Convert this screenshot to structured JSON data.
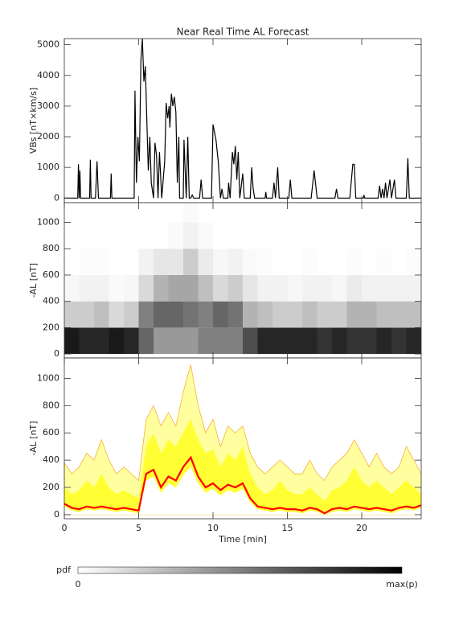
{
  "chart_data": [
    {
      "type": "line",
      "title": "Near Real Time AL Forecast",
      "y_label": "VBs [nT×km/s]",
      "color": "#000000",
      "x": [
        0,
        0.9,
        0.95,
        1.0,
        1.05,
        1.1,
        1.7,
        1.75,
        1.8,
        2.1,
        2.2,
        2.3,
        3.1,
        3.15,
        3.2,
        4.7,
        4.75,
        4.85,
        4.95,
        5.05,
        5.15,
        5.25,
        5.35,
        5.45,
        5.55,
        5.65,
        5.75,
        5.85,
        6.0,
        6.1,
        6.2,
        6.3,
        6.4,
        6.55,
        6.75,
        6.85,
        6.95,
        7.05,
        7.1,
        7.2,
        7.3,
        7.4,
        7.5,
        7.6,
        7.7,
        7.75,
        8.0,
        8.05,
        8.2,
        8.3,
        8.4,
        8.5,
        8.6,
        8.7,
        9.1,
        9.2,
        9.3,
        9.9,
        10.0,
        10.2,
        10.35,
        10.5,
        10.6,
        10.7,
        11.0,
        11.05,
        11.15,
        11.3,
        11.4,
        11.5,
        11.6,
        11.7,
        11.8,
        12.0,
        12.1,
        12.5,
        12.6,
        12.7,
        12.8,
        13.5,
        13.55,
        13.6,
        14.0,
        14.1,
        14.2,
        14.35,
        14.45,
        15.1,
        15.2,
        15.3,
        16.6,
        16.8,
        17.0,
        18.2,
        18.3,
        18.4,
        19.2,
        19.4,
        19.5,
        19.6,
        20.1,
        20.15,
        20.2,
        21.1,
        21.2,
        21.3,
        21.4,
        21.5,
        21.6,
        21.7,
        21.9,
        22.0,
        22.2,
        22.3,
        23.0,
        23.1,
        23.2,
        24
      ],
      "values": [
        0,
        0,
        1100,
        0,
        900,
        0,
        0,
        1250,
        0,
        0,
        1200,
        0,
        0,
        800,
        0,
        0,
        3500,
        500,
        2000,
        1200,
        4500,
        5200,
        3800,
        4300,
        2500,
        900,
        2000,
        500,
        0,
        1800,
        1400,
        0,
        1500,
        0,
        1200,
        3100,
        2600,
        3000,
        2300,
        3400,
        3000,
        3300,
        2800,
        500,
        2000,
        0,
        0,
        1900,
        0,
        2000,
        0,
        0,
        100,
        0,
        0,
        600,
        0,
        0,
        2400,
        1900,
        1200,
        0,
        300,
        0,
        0,
        500,
        0,
        1500,
        1100,
        1700,
        600,
        1500,
        0,
        800,
        0,
        0,
        1000,
        300,
        0,
        0,
        200,
        0,
        0,
        500,
        0,
        1000,
        0,
        0,
        600,
        0,
        0,
        900,
        0,
        0,
        300,
        0,
        0,
        1100,
        1100,
        0,
        0,
        100,
        0,
        0,
        400,
        0,
        300,
        0,
        500,
        0,
        600,
        0,
        600,
        0,
        0,
        1300,
        0,
        0
      ],
      "xlim": [
        0,
        24
      ],
      "ylim": [
        -150,
        5200
      ],
      "yticks": [
        0,
        1000,
        2000,
        3000,
        4000,
        5000
      ]
    },
    {
      "type": "heatmap",
      "y_label": "-AL [nT]",
      "xbins": [
        0,
        1,
        2,
        3,
        4,
        5,
        6,
        7,
        8,
        9,
        10,
        11,
        12,
        13,
        14,
        15,
        16,
        17,
        18,
        19,
        20,
        21,
        22,
        23,
        24
      ],
      "ybins": [
        0,
        200,
        400,
        600,
        800,
        1000,
        1200
      ],
      "values": [
        [
          0.9,
          0.85,
          0.85,
          0.9,
          0.85,
          0.6,
          0.4,
          0.4,
          0.4,
          0.5,
          0.5,
          0.5,
          0.7,
          0.85,
          0.85,
          0.85,
          0.85,
          0.8,
          0.85,
          0.8,
          0.8,
          0.85,
          0.8,
          0.85
        ],
        [
          0.2,
          0.2,
          0.25,
          0.15,
          0.2,
          0.5,
          0.6,
          0.6,
          0.55,
          0.5,
          0.6,
          0.55,
          0.3,
          0.25,
          0.2,
          0.2,
          0.25,
          0.2,
          0.2,
          0.3,
          0.3,
          0.25,
          0.25,
          0.25
        ],
        [
          0.03,
          0.05,
          0.05,
          0.02,
          0.03,
          0.15,
          0.3,
          0.35,
          0.35,
          0.25,
          0.15,
          0.2,
          0.1,
          0.05,
          0.05,
          0.03,
          0.05,
          0.05,
          0.03,
          0.08,
          0.05,
          0.05,
          0.05,
          0.05
        ],
        [
          0,
          0.01,
          0.01,
          0,
          0,
          0.05,
          0.1,
          0.1,
          0.2,
          0.08,
          0.03,
          0.05,
          0.02,
          0.01,
          0,
          0,
          0.01,
          0,
          0,
          0.01,
          0,
          0.01,
          0,
          0.01
        ],
        [
          0,
          0,
          0,
          0,
          0,
          0,
          0,
          0.02,
          0.05,
          0.02,
          0,
          0,
          0,
          0,
          0,
          0,
          0,
          0,
          0,
          0,
          0,
          0,
          0,
          0
        ],
        [
          0,
          0,
          0,
          0,
          0,
          0,
          0,
          0,
          0.02,
          0,
          0,
          0,
          0,
          0,
          0,
          0,
          0,
          0,
          0,
          0,
          0,
          0,
          0,
          0
        ]
      ],
      "xlim": [
        0,
        24
      ],
      "ylim": [
        -30,
        1150
      ],
      "yticks": [
        0,
        200,
        400,
        600,
        800,
        1000
      ],
      "colorbar_label": "pdf",
      "colorbar_min_label": "0",
      "colorbar_max_label": "max(p)"
    },
    {
      "type": "band",
      "y_label": "-AL [nT]",
      "x_label": "Time [min]",
      "x": [
        0,
        0.5,
        1,
        1.5,
        2,
        2.5,
        3,
        3.5,
        4,
        4.5,
        5,
        5.5,
        6,
        6.5,
        7,
        7.5,
        8,
        8.5,
        9,
        9.5,
        10,
        10.5,
        11,
        11.5,
        12,
        12.5,
        13,
        13.5,
        14,
        14.5,
        15,
        15.5,
        16,
        16.5,
        17,
        17.5,
        18,
        18.5,
        19,
        19.5,
        20,
        20.5,
        21,
        21.5,
        22,
        22.5,
        23,
        23.5,
        24
      ],
      "series": [
        {
          "color": "#ffffa0",
          "edge": "#f5a623",
          "values": [
            380,
            300,
            350,
            450,
            400,
            550,
            400,
            300,
            350,
            300,
            250,
            700,
            800,
            650,
            750,
            650,
            900,
            1100,
            800,
            600,
            700,
            500,
            650,
            600,
            650,
            450,
            350,
            300,
            350,
            400,
            350,
            300,
            300,
            400,
            300,
            250,
            350,
            400,
            450,
            550,
            450,
            350,
            450,
            350,
            300,
            350,
            500,
            400,
            300
          ]
        },
        {
          "color": "#ffff33",
          "values": [
            200,
            150,
            180,
            250,
            200,
            300,
            200,
            150,
            180,
            150,
            120,
            500,
            600,
            450,
            550,
            500,
            600,
            700,
            550,
            450,
            480,
            350,
            450,
            400,
            500,
            300,
            200,
            150,
            180,
            250,
            180,
            150,
            150,
            200,
            150,
            100,
            180,
            200,
            250,
            350,
            250,
            200,
            250,
            200,
            150,
            200,
            250,
            200,
            150
          ]
        },
        {
          "color": "#ffffff",
          "values": [
            60,
            30,
            20,
            40,
            30,
            40,
            30,
            20,
            30,
            20,
            10,
            250,
            280,
            160,
            230,
            200,
            290,
            350,
            230,
            160,
            190,
            140,
            180,
            160,
            190,
            90,
            40,
            30,
            20,
            30,
            20,
            20,
            10,
            30,
            20,
            0,
            20,
            30,
            20,
            40,
            30,
            20,
            30,
            20,
            10,
            30,
            40,
            30,
            50
          ]
        },
        {
          "color": "#ff0000",
          "values": [
            80,
            50,
            40,
            60,
            50,
            60,
            50,
            40,
            50,
            40,
            30,
            300,
            330,
            200,
            280,
            250,
            350,
            420,
            280,
            200,
            230,
            180,
            220,
            200,
            230,
            120,
            60,
            50,
            40,
            50,
            40,
            40,
            30,
            50,
            40,
            10,
            40,
            50,
            40,
            60,
            50,
            40,
            50,
            40,
            30,
            50,
            60,
            50,
            70
          ]
        }
      ],
      "xlim": [
        0,
        24
      ],
      "ylim": [
        -30,
        1150
      ],
      "yticks": [
        0,
        200,
        400,
        600,
        800,
        1000
      ],
      "xticks": [
        0,
        5,
        10,
        15,
        20
      ]
    }
  ]
}
